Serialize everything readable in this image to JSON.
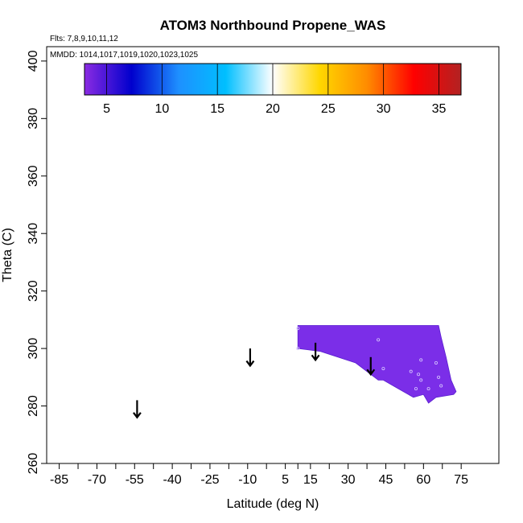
{
  "chart_data": {
    "type": "heatmap",
    "title": "ATOM3 Northbound Propene_WAS",
    "subtitle_flights": "Flts: 7,8,9,10,11,12",
    "subtitle_dates": "MMDD: 1014,1017,1019,1020,1023,1025",
    "xlabel": "Latitude (deg N)",
    "ylabel": "Theta (C)",
    "xlim": [
      -90,
      90
    ],
    "ylim": [
      260,
      405
    ],
    "x_ticks": [
      -85,
      -70,
      -55,
      -40,
      -25,
      -10,
      5,
      15,
      30,
      45,
      60,
      75
    ],
    "y_ticks": [
      260,
      280,
      300,
      320,
      340,
      360,
      380,
      400
    ],
    "colorbar": {
      "range": [
        3,
        37
      ],
      "ticks": [
        5,
        10,
        15,
        20,
        25,
        30,
        35
      ],
      "colors": [
        "#8a2be2",
        "#0000cd",
        "#1e90ff",
        "#00bfff",
        "#ffffff",
        "#ffd700",
        "#ff8c00",
        "#ff0000",
        "#b22222"
      ]
    },
    "field_color": "#7b2ee8",
    "field_polygon": [
      [
        10,
        308
      ],
      [
        66,
        308
      ],
      [
        67,
        304
      ],
      [
        69,
        297
      ],
      [
        71,
        289
      ],
      [
        73,
        285
      ],
      [
        72,
        284
      ],
      [
        65,
        283
      ],
      [
        62,
        281
      ],
      [
        60,
        284
      ],
      [
        56,
        283
      ],
      [
        50,
        286
      ],
      [
        44,
        289
      ],
      [
        42,
        289
      ],
      [
        33,
        295
      ],
      [
        19,
        299
      ],
      [
        10,
        300
      ]
    ],
    "sample_points": [
      [
        10,
        307
      ],
      [
        10,
        300
      ],
      [
        42,
        303
      ],
      [
        44,
        293
      ],
      [
        55,
        292
      ],
      [
        57,
        286
      ],
      [
        58,
        291
      ],
      [
        59,
        289
      ],
      [
        59,
        296
      ],
      [
        62,
        286
      ],
      [
        65,
        295
      ],
      [
        66,
        290
      ],
      [
        67,
        287
      ]
    ],
    "arrows": [
      {
        "lat": -54,
        "theta_top": 282,
        "theta_bottom": 276
      },
      {
        "lat": -9,
        "theta_top": 300,
        "theta_bottom": 294
      },
      {
        "lat": 17,
        "theta_top": 302,
        "theta_bottom": 296
      },
      {
        "lat": 39,
        "theta_top": 297,
        "theta_bottom": 291
      }
    ]
  }
}
